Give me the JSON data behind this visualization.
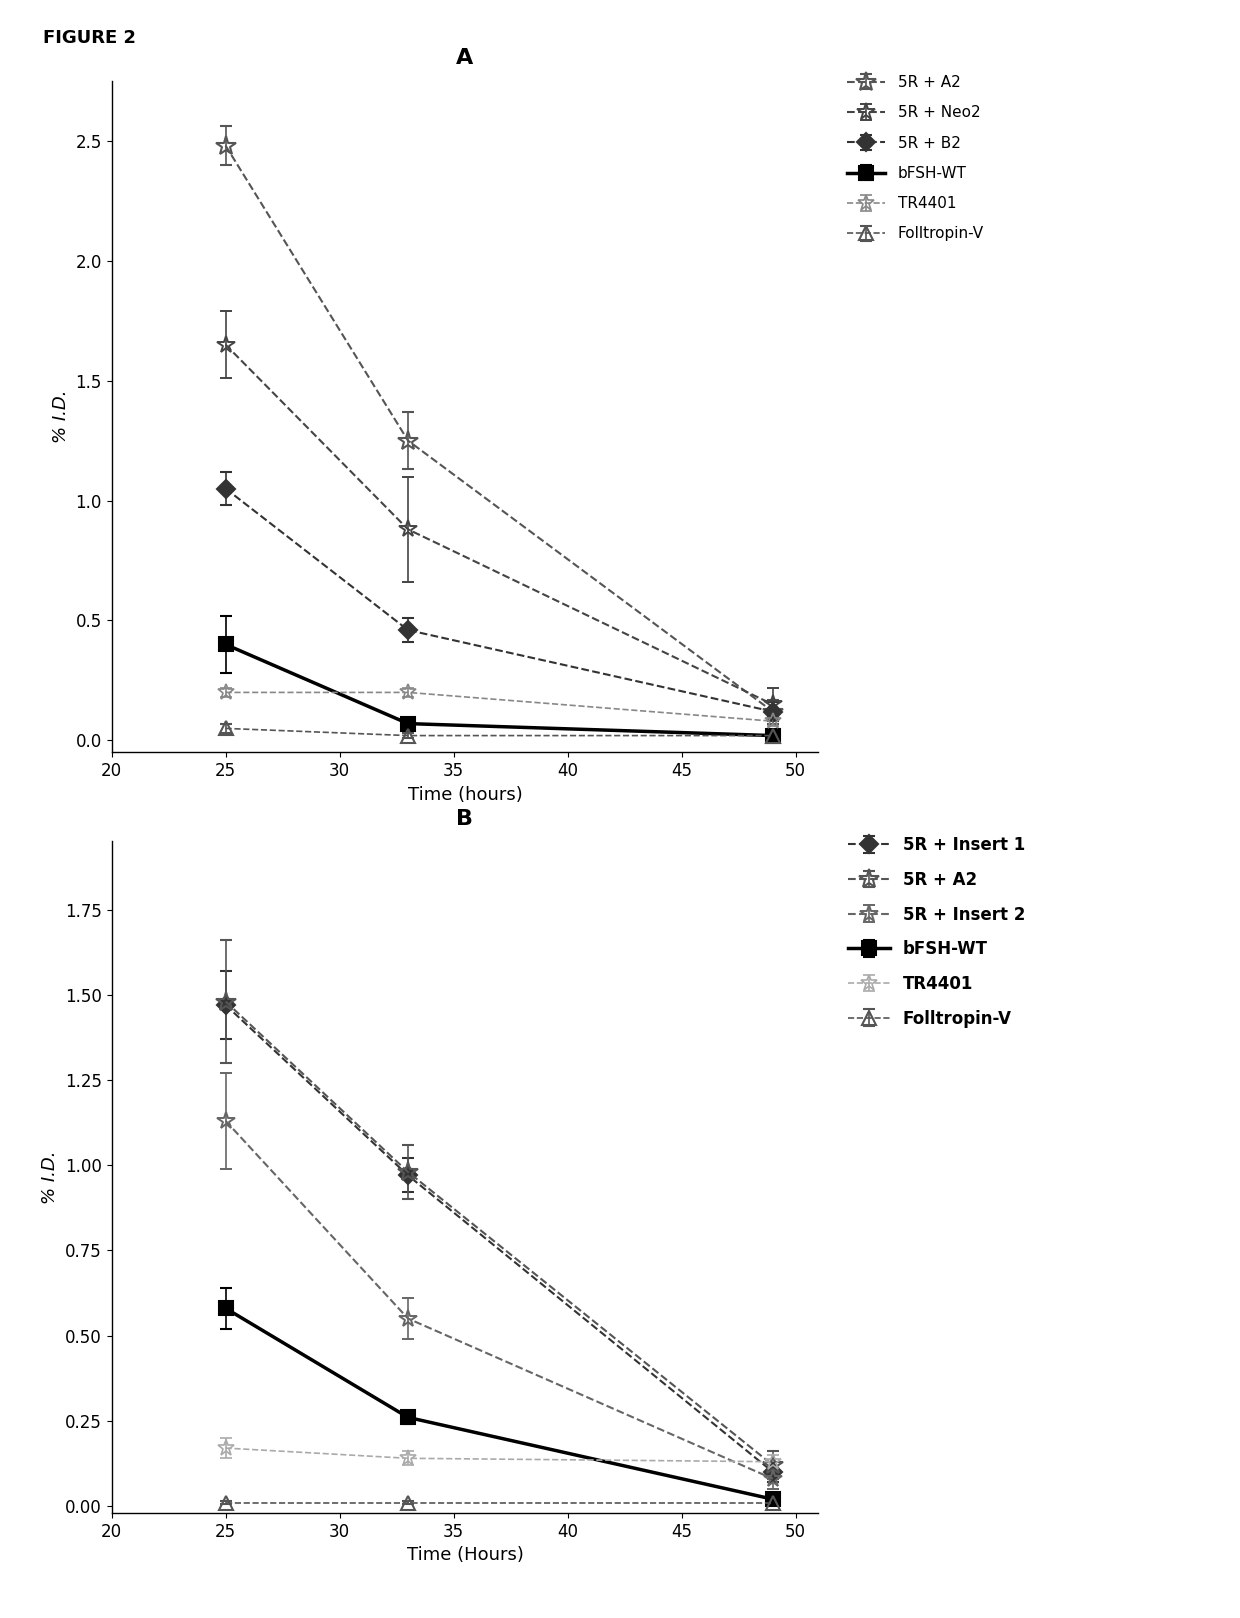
{
  "panel_A": {
    "title": "A",
    "xlabel": "Time (hours)",
    "ylabel": "% I.D.",
    "xlim": [
      20,
      51
    ],
    "ylim": [
      -0.05,
      2.75
    ],
    "xticks": [
      20,
      25,
      30,
      35,
      40,
      45,
      50
    ],
    "yticks": [
      0.0,
      0.5,
      1.0,
      1.5,
      2.0,
      2.5
    ],
    "series": [
      {
        "label": "5R + A2",
        "x": [
          25,
          33,
          49
        ],
        "y": [
          2.48,
          1.25,
          0.12
        ],
        "yerr": [
          0.08,
          0.12,
          0.05
        ],
        "color": "#555555",
        "marker": "x_star_big",
        "lw": 1.5,
        "ls": "dashed"
      },
      {
        "label": "5R + Neo2",
        "x": [
          25,
          33,
          49
        ],
        "y": [
          1.65,
          0.88,
          0.15
        ],
        "yerr": [
          0.14,
          0.22,
          0.07
        ],
        "color": "#444444",
        "marker": "star4",
        "lw": 1.5,
        "ls": "dashed"
      },
      {
        "label": "5R + B2",
        "x": [
          25,
          33,
          49
        ],
        "y": [
          1.05,
          0.46,
          0.12
        ],
        "yerr": [
          0.07,
          0.05,
          0.04
        ],
        "color": "#333333",
        "marker": "diamond_fill",
        "lw": 1.5,
        "ls": "dashed"
      },
      {
        "label": "bFSH-WT",
        "x": [
          25,
          33,
          49
        ],
        "y": [
          0.4,
          0.07,
          0.02
        ],
        "yerr": [
          0.12,
          0.02,
          0.01
        ],
        "color": "#000000",
        "marker": "square_fill",
        "lw": 2.5,
        "ls": "solid"
      },
      {
        "label": "TR4401",
        "x": [
          25,
          33,
          49
        ],
        "y": [
          0.2,
          0.2,
          0.08
        ],
        "yerr": [
          0.02,
          0.02,
          0.02
        ],
        "color": "#888888",
        "marker": "x_star_light",
        "lw": 1.2,
        "ls": "dashed"
      },
      {
        "label": "Folltropin-V",
        "x": [
          25,
          33,
          49
        ],
        "y": [
          0.05,
          0.02,
          0.02
        ],
        "yerr": [
          0.02,
          0.01,
          0.01
        ],
        "color": "#555555",
        "marker": "triangle_open",
        "lw": 1.2,
        "ls": "dashed"
      }
    ]
  },
  "panel_B": {
    "title": "B",
    "xlabel": "Time (Hours)",
    "ylabel": "% I.D.",
    "xlim": [
      20,
      51
    ],
    "ylim": [
      -0.02,
      1.95
    ],
    "xticks": [
      20,
      25,
      30,
      35,
      40,
      45,
      50
    ],
    "yticks": [
      0.0,
      0.25,
      0.5,
      0.75,
      1.0,
      1.25,
      1.5,
      1.75
    ],
    "series": [
      {
        "label": "5R + Insert 1",
        "x": [
          25,
          33,
          49
        ],
        "y": [
          1.47,
          0.97,
          0.1
        ],
        "yerr": [
          0.1,
          0.05,
          0.03
        ],
        "color": "#333333",
        "marker": "diamond_fill",
        "lw": 1.5,
        "ls": "dashed"
      },
      {
        "label": "5R + A2",
        "x": [
          25,
          33,
          49
        ],
        "y": [
          1.48,
          0.98,
          0.12
        ],
        "yerr": [
          0.18,
          0.08,
          0.04
        ],
        "color": "#555555",
        "marker": "x_star_big",
        "lw": 1.5,
        "ls": "dashed"
      },
      {
        "label": "5R + Insert 2",
        "x": [
          25,
          33,
          49
        ],
        "y": [
          1.13,
          0.55,
          0.08
        ],
        "yerr": [
          0.14,
          0.06,
          0.03
        ],
        "color": "#666666",
        "marker": "x_star_med",
        "lw": 1.5,
        "ls": "dashed"
      },
      {
        "label": "bFSH-WT",
        "x": [
          25,
          33,
          49
        ],
        "y": [
          0.58,
          0.26,
          0.02
        ],
        "yerr": [
          0.06,
          0.02,
          0.01
        ],
        "color": "#000000",
        "marker": "square_fill",
        "lw": 2.5,
        "ls": "solid"
      },
      {
        "label": "TR4401",
        "x": [
          25,
          33,
          49
        ],
        "y": [
          0.17,
          0.14,
          0.13
        ],
        "yerr": [
          0.03,
          0.02,
          0.02
        ],
        "color": "#aaaaaa",
        "marker": "x_star_light",
        "lw": 1.2,
        "ls": "dashed"
      },
      {
        "label": "Folltropin-V",
        "x": [
          25,
          33,
          49
        ],
        "y": [
          0.01,
          0.01,
          0.01
        ],
        "yerr": [
          0.005,
          0.005,
          0.005
        ],
        "color": "#555555",
        "marker": "triangle_open",
        "lw": 1.2,
        "ls": "dashed"
      }
    ]
  },
  "figure_label": "FIGURE 2",
  "background_color": "#ffffff",
  "font_size": 13,
  "title_fontsize": 16,
  "legend_fontsize_A": 11,
  "legend_fontsize_B": 12
}
